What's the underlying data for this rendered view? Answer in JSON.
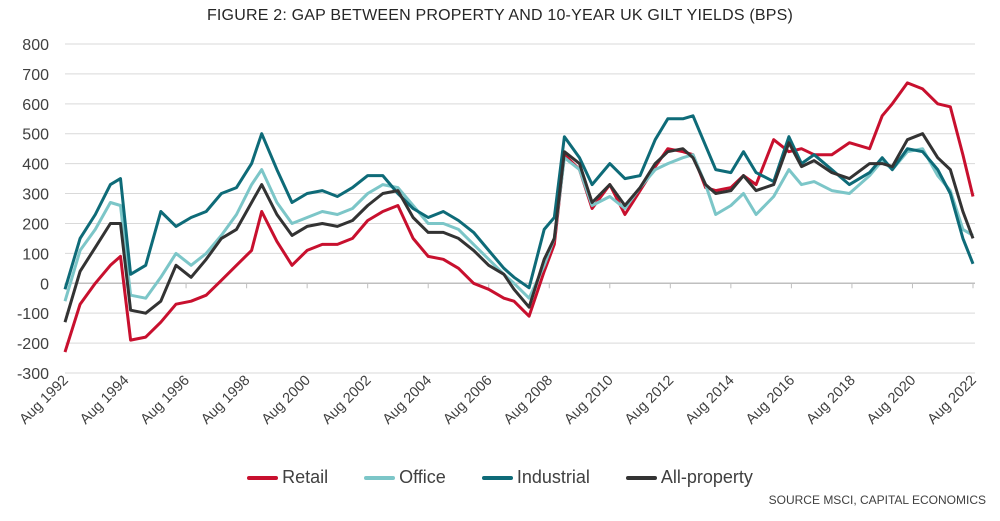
{
  "chart_data": {
    "type": "line",
    "title": "FIGURE 2: GAP BETWEEN PROPERTY AND 10-YEAR UK GILT YIELDS (BPS)",
    "xlabel": "",
    "ylabel": "",
    "ylim": [
      -300,
      800
    ],
    "yticks": [
      "800",
      "700",
      "600",
      "500",
      "400",
      "300",
      "200",
      "100",
      "0",
      "-100",
      "-200",
      "-300"
    ],
    "xlim": [
      "1992-08",
      "2022-08"
    ],
    "xticks": [
      "Aug 1992",
      "Aug 1994",
      "Aug 1996",
      "Aug 1998",
      "Aug 2000",
      "Aug 2002",
      "Aug 2004",
      "Aug 2006",
      "Aug 2008",
      "Aug 2010",
      "Aug 2012",
      "Aug 2014",
      "Aug 2016",
      "Aug 2018",
      "Aug 2020",
      "Aug 2022"
    ],
    "grid": true,
    "legend_placement": "bottom",
    "x": [
      "1992-08",
      "1993-02",
      "1993-08",
      "1994-02",
      "1994-06",
      "1994-10",
      "1995-04",
      "1995-10",
      "1996-04",
      "1996-10",
      "1997-04",
      "1997-10",
      "1998-04",
      "1998-10",
      "1999-02",
      "1999-08",
      "2000-02",
      "2000-08",
      "2001-02",
      "2001-08",
      "2002-02",
      "2002-08",
      "2003-02",
      "2003-08",
      "2004-02",
      "2004-08",
      "2005-02",
      "2005-08",
      "2006-02",
      "2006-08",
      "2007-02",
      "2007-06",
      "2007-12",
      "2008-06",
      "2008-10",
      "2009-02",
      "2009-08",
      "2010-01",
      "2010-08",
      "2011-02",
      "2011-08",
      "2012-02",
      "2012-07",
      "2013-01",
      "2013-05",
      "2013-10",
      "2014-02",
      "2014-08",
      "2015-01",
      "2015-06",
      "2016-01",
      "2016-07",
      "2016-12",
      "2017-05",
      "2017-12",
      "2018-07",
      "2019-03",
      "2019-08",
      "2019-12",
      "2020-06",
      "2020-12",
      "2021-06",
      "2021-11",
      "2022-04",
      "2022-08"
    ],
    "series": [
      {
        "name": "Retail",
        "color": "#c8102e",
        "values": [
          -230,
          -70,
          0,
          60,
          90,
          -190,
          -180,
          -130,
          -70,
          -60,
          -40,
          10,
          60,
          110,
          240,
          140,
          60,
          110,
          130,
          130,
          150,
          210,
          240,
          260,
          150,
          90,
          80,
          50,
          0,
          -20,
          -50,
          -60,
          -110,
          40,
          130,
          430,
          380,
          250,
          330,
          230,
          310,
          390,
          450,
          440,
          430,
          320,
          310,
          320,
          360,
          330,
          480,
          440,
          450,
          430,
          430,
          470,
          450,
          560,
          600,
          670,
          650,
          600,
          590,
          430,
          290
        ]
      },
      {
        "name": "Office",
        "color": "#7cc6c8",
        "values": [
          -60,
          110,
          180,
          270,
          260,
          -40,
          -50,
          20,
          100,
          60,
          100,
          160,
          230,
          330,
          380,
          270,
          200,
          220,
          240,
          230,
          250,
          300,
          330,
          320,
          260,
          200,
          200,
          180,
          130,
          80,
          30,
          0,
          -50,
          60,
          150,
          420,
          380,
          260,
          290,
          250,
          320,
          380,
          400,
          420,
          430,
          330,
          230,
          260,
          300,
          230,
          290,
          380,
          330,
          340,
          310,
          300,
          360,
          410,
          380,
          440,
          450,
          360,
          310,
          180,
          160
        ]
      },
      {
        "name": "Industrial",
        "color": "#0e6b78",
        "values": [
          -20,
          150,
          230,
          330,
          350,
          30,
          60,
          240,
          190,
          220,
          240,
          300,
          320,
          400,
          500,
          380,
          270,
          300,
          310,
          290,
          320,
          360,
          360,
          300,
          250,
          220,
          240,
          210,
          170,
          110,
          50,
          20,
          -15,
          180,
          220,
          490,
          420,
          330,
          400,
          350,
          360,
          480,
          550,
          550,
          560,
          460,
          380,
          370,
          440,
          370,
          340,
          490,
          400,
          430,
          380,
          330,
          370,
          420,
          380,
          450,
          440,
          380,
          300,
          150,
          65
        ]
      },
      {
        "name": "All-property",
        "color": "#333333",
        "values": [
          -130,
          40,
          120,
          200,
          200,
          -90,
          -100,
          -60,
          60,
          20,
          80,
          150,
          180,
          270,
          330,
          230,
          160,
          190,
          200,
          190,
          210,
          260,
          300,
          310,
          220,
          170,
          170,
          150,
          110,
          60,
          30,
          -20,
          -80,
          80,
          150,
          440,
          400,
          270,
          330,
          260,
          320,
          400,
          440,
          450,
          420,
          330,
          300,
          310,
          360,
          310,
          330,
          470,
          390,
          410,
          370,
          350,
          400,
          400,
          390,
          480,
          500,
          420,
          380,
          240,
          150
        ]
      }
    ],
    "source": "SOURCE MSCI, CAPITAL ECONOMICS"
  }
}
